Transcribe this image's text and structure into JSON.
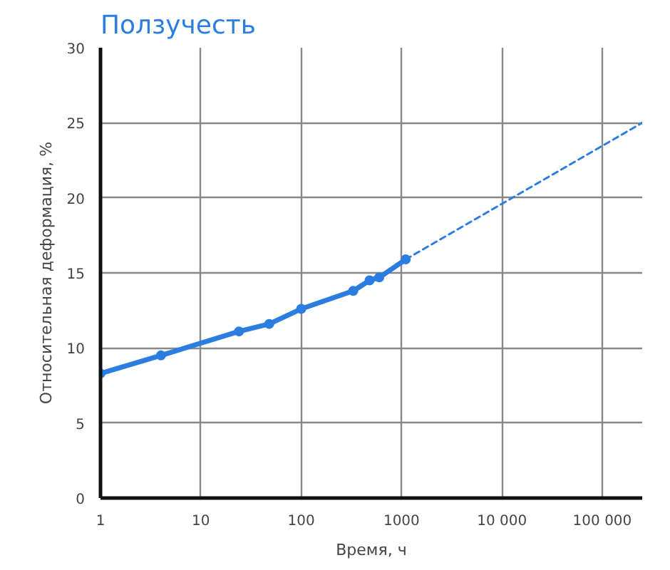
{
  "chart_data": {
    "type": "line",
    "title": "Ползучесть",
    "xlabel": "Время, ч",
    "ylabel": "Относительная деформация, %",
    "log": "x",
    "grid": true,
    "xlim": [
      1,
      250000
    ],
    "xticks": [
      1,
      10,
      100,
      1000,
      {
        "value": 10000,
        "label": "10 000"
      },
      {
        "value": 100000,
        "label": "100 000"
      }
    ],
    "ylim": [
      0,
      30
    ],
    "yticks": [
      0,
      5,
      10,
      15,
      20,
      25,
      30
    ],
    "series": [
      {
        "color": "#2b7de0",
        "marker": "circle",
        "line_style": "solid",
        "x": [
          1,
          4,
          24,
          48,
          100,
          330,
          480,
          600,
          1100
        ],
        "values": [
          8.3,
          9.5,
          11.1,
          11.6,
          12.6,
          13.8,
          14.5,
          14.7,
          15.9
        ]
      },
      {
        "color": "#2b7de0",
        "marker": "none",
        "line_style": "dashed",
        "x": [
          1100,
          250000
        ],
        "values": [
          15.9,
          25
        ]
      }
    ]
  }
}
